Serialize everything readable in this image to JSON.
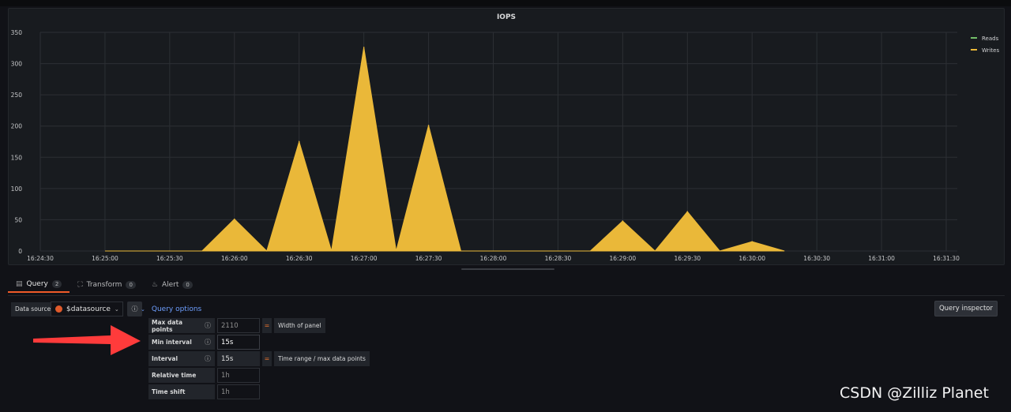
{
  "panel": {
    "title": "IOPS"
  },
  "chart_data": {
    "type": "area",
    "x": [
      "16:24:30",
      "16:25:00",
      "16:25:30",
      "16:26:00",
      "16:26:30",
      "16:27:00",
      "16:27:30",
      "16:28:00",
      "16:28:30",
      "16:29:00",
      "16:29:30",
      "16:30:00",
      "16:30:30",
      "16:31:00",
      "16:31:30"
    ],
    "ylim": [
      0,
      350
    ],
    "yticks": [
      "0",
      "50",
      "100",
      "150",
      "200",
      "250",
      "300",
      "350"
    ],
    "grid": true,
    "legend_placement": "top-right",
    "series": [
      {
        "name": "Reads",
        "color": "#73bf69",
        "points": []
      },
      {
        "name": "Writes",
        "color": "#eab839",
        "points": [
          [
            "16:25:00",
            0
          ],
          [
            "16:25:45",
            0
          ],
          [
            "16:26:00",
            51
          ],
          [
            "16:26:15",
            0
          ],
          [
            "16:26:30",
            175
          ],
          [
            "16:26:45",
            0
          ],
          [
            "16:27:00",
            326
          ],
          [
            "16:27:15",
            0
          ],
          [
            "16:27:30",
            201
          ],
          [
            "16:27:45",
            0
          ],
          [
            "16:28:45",
            0
          ],
          [
            "16:29:00",
            48
          ],
          [
            "16:29:15",
            0
          ],
          [
            "16:29:30",
            63
          ],
          [
            "16:29:45",
            0
          ],
          [
            "16:30:00",
            15
          ],
          [
            "16:30:15",
            0
          ]
        ]
      }
    ]
  },
  "tabs": [
    {
      "label": "Query",
      "count": "2",
      "icon": "database-icon"
    },
    {
      "label": "Transform",
      "count": "0",
      "icon": "transform-icon"
    },
    {
      "label": "Alert",
      "count": "0",
      "icon": "bell-icon"
    }
  ],
  "datasource": {
    "label": "Data source",
    "value": "$datasource"
  },
  "query_options": {
    "toggle_label": "Query options",
    "inspector_label": "Query inspector",
    "rows": {
      "max_data_points": {
        "label": "Max data points",
        "value": "2110",
        "eq": "=",
        "note": "Width of panel"
      },
      "min_interval": {
        "label": "Min interval",
        "value": "15s"
      },
      "interval": {
        "label": "Interval",
        "value": "15s",
        "eq": "=",
        "note": "Time range / max data points"
      },
      "relative_time": {
        "label": "Relative time",
        "placeholder": "1h"
      },
      "time_shift": {
        "label": "Time shift",
        "placeholder": "1h"
      }
    }
  },
  "colors": {
    "accent_tab": "#f05a28",
    "link": "#6e9fff",
    "writes": "#eab839",
    "reads": "#73bf69",
    "annotation_arrow": "#ff3b3b"
  },
  "watermark": "CSDN @Zilliz Planet"
}
